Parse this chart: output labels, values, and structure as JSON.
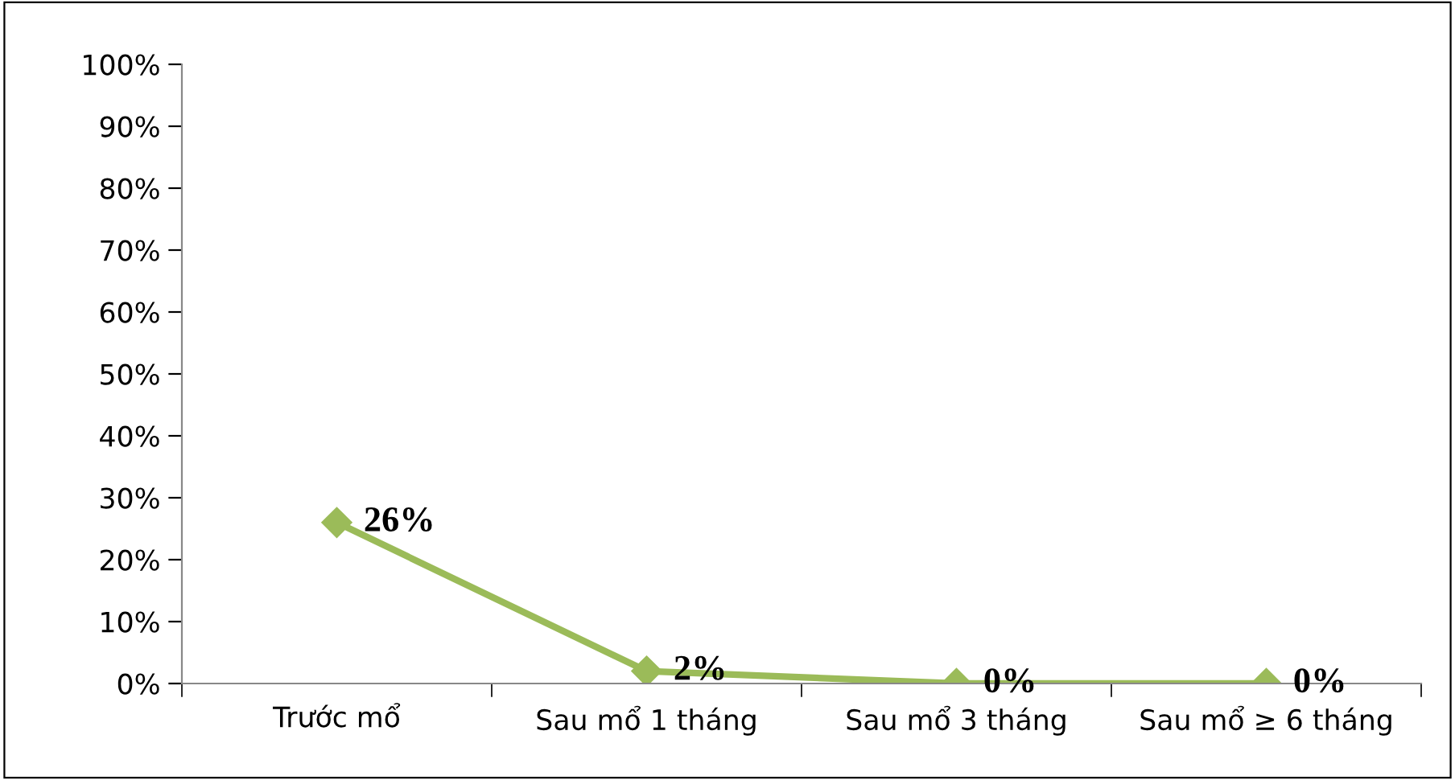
{
  "chart_data": {
    "type": "line",
    "categories": [
      "Trước mổ",
      "Sau mổ 1 tháng",
      "Sau mổ 3 tháng",
      "Sau mổ ≥ 6 tháng"
    ],
    "series": [
      {
        "color": "#9bbb59",
        "values": [
          26,
          2,
          0,
          0
        ],
        "value_labels": [
          "26%",
          "2%",
          "0%",
          "0%"
        ]
      }
    ],
    "ylim": [
      0,
      100
    ],
    "yticks": [
      {
        "value": 0,
        "label": "0%"
      },
      {
        "value": 10,
        "label": "10%"
      },
      {
        "value": 20,
        "label": "20%"
      },
      {
        "value": 30,
        "label": "30%"
      },
      {
        "value": 40,
        "label": "40%"
      },
      {
        "value": 50,
        "label": "50%"
      },
      {
        "value": 60,
        "label": "60%"
      },
      {
        "value": 70,
        "label": "70%"
      },
      {
        "value": 80,
        "label": "80%"
      },
      {
        "value": 90,
        "label": "90%"
      },
      {
        "value": 100,
        "label": "100%"
      }
    ],
    "grid": false,
    "legend": false,
    "marker": "diamond",
    "line_style": "solid"
  }
}
